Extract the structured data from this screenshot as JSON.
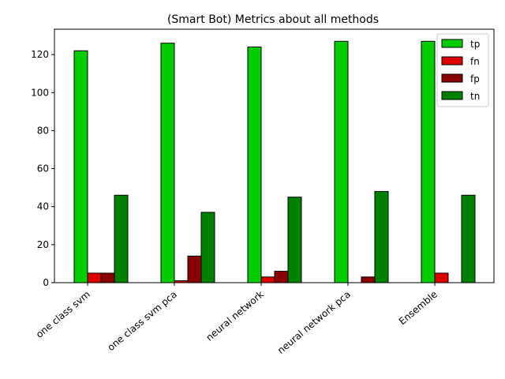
{
  "chart_data": {
    "type": "bar",
    "title": "(Smart Bot) Metrics about all methods",
    "xlabel": "",
    "ylabel": "",
    "categories": [
      "one class svm",
      "one class svm pca",
      "neural network",
      "neural network pca",
      "Ensemble"
    ],
    "series": [
      {
        "name": "tp",
        "color": "#00cc00",
        "values": [
          122,
          126,
          124,
          127,
          127
        ]
      },
      {
        "name": "fn",
        "color": "#dd0000",
        "values": [
          5,
          1,
          3,
          0,
          5
        ]
      },
      {
        "name": "fp",
        "color": "#880000",
        "values": [
          5,
          14,
          6,
          3,
          0
        ]
      },
      {
        "name": "tn",
        "color": "#008000",
        "values": [
          46,
          37,
          45,
          48,
          46
        ]
      }
    ],
    "ylim": [
      0,
      133.35
    ],
    "yticks": [
      0,
      20,
      40,
      60,
      80,
      100,
      120
    ],
    "grid": false,
    "legend_position": "top-right"
  }
}
